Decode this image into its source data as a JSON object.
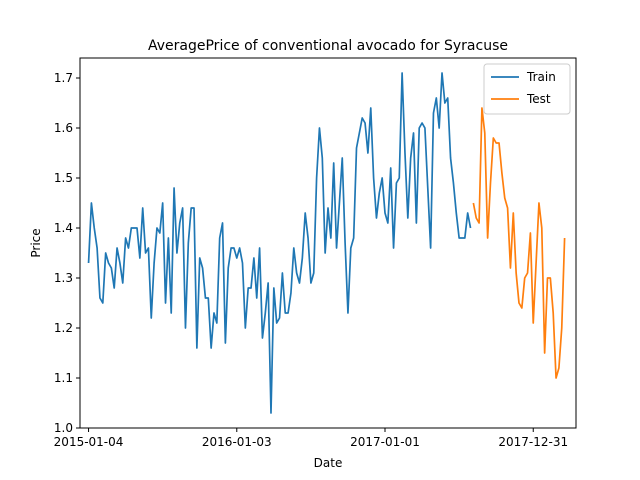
{
  "chart_data": {
    "type": "line",
    "title": "AveragePrice of conventional avocado for Syracuse",
    "xlabel": "Date",
    "ylabel": "Price",
    "ylim": [
      1.0,
      1.74
    ],
    "yticks": [
      1.0,
      1.1,
      1.2,
      1.3,
      1.4,
      1.5,
      1.6,
      1.7
    ],
    "ytick_labels": [
      "1.0",
      "1.1",
      "1.2",
      "1.3",
      "1.4",
      "1.5",
      "1.6",
      "1.7"
    ],
    "xlim": [
      "2014-12-14",
      "2018-04-15"
    ],
    "xticks": [
      "2015-01-04",
      "2016-01-03",
      "2017-01-01",
      "2017-12-31"
    ],
    "xtick_labels": [
      "2015-01-04",
      "2016-01-03",
      "2017-01-01",
      "2017-12-31"
    ],
    "grid": false,
    "legend": "top-right",
    "series": [
      {
        "name": "Train",
        "color": "#1f77b4",
        "start": "2015-01-04",
        "step_days": 7,
        "values": [
          1.33,
          1.45,
          1.4,
          1.36,
          1.26,
          1.25,
          1.35,
          1.33,
          1.32,
          1.28,
          1.36,
          1.33,
          1.29,
          1.38,
          1.36,
          1.4,
          1.4,
          1.4,
          1.34,
          1.44,
          1.35,
          1.36,
          1.22,
          1.33,
          1.4,
          1.39,
          1.45,
          1.25,
          1.38,
          1.23,
          1.48,
          1.35,
          1.41,
          1.44,
          1.2,
          1.37,
          1.44,
          1.44,
          1.16,
          1.34,
          1.32,
          1.26,
          1.26,
          1.16,
          1.23,
          1.21,
          1.38,
          1.41,
          1.17,
          1.32,
          1.36,
          1.36,
          1.34,
          1.36,
          1.33,
          1.2,
          1.28,
          1.28,
          1.34,
          1.26,
          1.36,
          1.18,
          1.23,
          1.29,
          1.03,
          1.28,
          1.21,
          1.22,
          1.31,
          1.23,
          1.23,
          1.27,
          1.36,
          1.31,
          1.29,
          1.34,
          1.43,
          1.38,
          1.29,
          1.31,
          1.5,
          1.6,
          1.54,
          1.35,
          1.44,
          1.38,
          1.53,
          1.36,
          1.45,
          1.54,
          1.37,
          1.23,
          1.36,
          1.38,
          1.56,
          1.59,
          1.62,
          1.61,
          1.55,
          1.64,
          1.5,
          1.42,
          1.47,
          1.5,
          1.43,
          1.41,
          1.52,
          1.36,
          1.49,
          1.5,
          1.71,
          1.55,
          1.42,
          1.54,
          1.59,
          1.41,
          1.6,
          1.61,
          1.6,
          1.48,
          1.36,
          1.63,
          1.66,
          1.6,
          1.71,
          1.65,
          1.66,
          1.54,
          1.49,
          1.43,
          1.38,
          1.38,
          1.38,
          1.43,
          1.4
        ]
      },
      {
        "name": "Test",
        "color": "#ff7f0e",
        "start": "2017-08-06",
        "step_days": 7,
        "values": [
          1.45,
          1.42,
          1.41,
          1.64,
          1.59,
          1.38,
          1.49,
          1.58,
          1.57,
          1.57,
          1.51,
          1.46,
          1.44,
          1.32,
          1.43,
          1.31,
          1.25,
          1.24,
          1.3,
          1.31,
          1.39,
          1.21,
          1.33,
          1.45,
          1.4,
          1.15,
          1.3,
          1.3,
          1.23,
          1.1,
          1.12,
          1.2,
          1.38
        ]
      }
    ]
  }
}
